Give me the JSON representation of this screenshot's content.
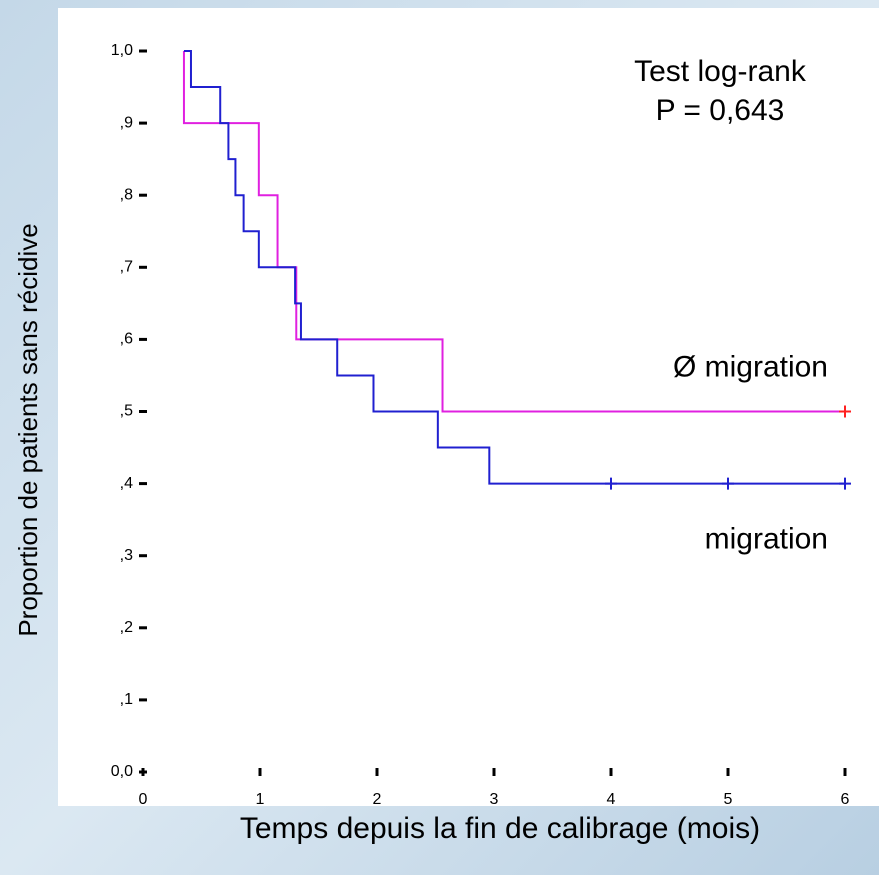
{
  "chart_data": {
    "type": "step",
    "annotations": [
      "Test log-rank",
      "P = 0,643"
    ],
    "xlabel": "Temps depuis la fin de calibrage (mois)",
    "ylabel": "Proportion de patients sans récidive",
    "xlim": [
      0,
      6
    ],
    "xticks": [
      0,
      1,
      2,
      3,
      4,
      5,
      6
    ],
    "ylim": [
      0,
      1
    ],
    "yticks": [
      {
        "value": 0,
        "label": "0,0"
      },
      {
        "value": 0.1,
        "label": ",1"
      },
      {
        "value": 0.2,
        "label": ",2"
      },
      {
        "value": 0.3,
        "label": ",3"
      },
      {
        "value": 0.4,
        "label": ",4"
      },
      {
        "value": 0.5,
        "label": ",5"
      },
      {
        "value": 0.6,
        "label": ",6"
      },
      {
        "value": 0.7,
        "label": ",7"
      },
      {
        "value": 0.8,
        "label": ",8"
      },
      {
        "value": 0.9,
        "label": ",9"
      },
      {
        "value": 1,
        "label": "1,0"
      }
    ],
    "series": [
      {
        "name": "Ø migration",
        "color": "#e020e0",
        "censor_color": "#ff2020",
        "x": [
          0.35,
          0.35,
          0.99,
          1.15,
          1.31,
          2.56,
          6
        ],
        "values": [
          1,
          0.9,
          0.8,
          0.7,
          0.6,
          0.5,
          0.5
        ],
        "censored": {
          "x": [
            6
          ],
          "values": [
            0.5
          ]
        }
      },
      {
        "name": "migration",
        "color": "#2020d0",
        "censor_color": "#2020d0",
        "x": [
          0.35,
          0.41,
          0.66,
          0.73,
          0.79,
          0.86,
          0.99,
          1.3,
          1.35,
          1.66,
          1.97,
          2.52,
          2.96,
          6
        ],
        "values": [
          1,
          0.95,
          0.9,
          0.85,
          0.8,
          0.75,
          0.7,
          0.65,
          0.6,
          0.55,
          0.5,
          0.45,
          0.4,
          0.4
        ],
        "censored": {
          "x": [
            4,
            5,
            6
          ],
          "values": [
            0.4,
            0.4,
            0.4
          ]
        }
      }
    ]
  }
}
